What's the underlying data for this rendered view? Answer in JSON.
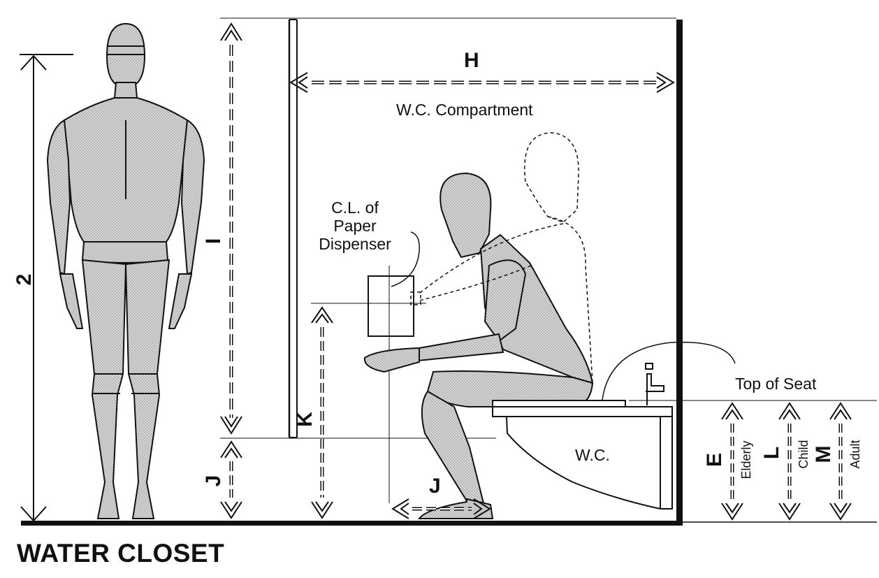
{
  "title": "WATER CLOSET",
  "labels": {
    "compartment": "W.C. Compartment",
    "dispenser_line1": "C.L. of",
    "dispenser_line2": "Paper",
    "dispenser_line3": "Dispenser",
    "top_of_seat": "Top of Seat",
    "wc": "W.C."
  },
  "dimension_letters": {
    "h": "H",
    "i": "I",
    "j_left": "J",
    "j_floor": "J",
    "k": "K",
    "e": "E",
    "l": "L",
    "m": "M",
    "two": "2"
  },
  "seat_height_groups": {
    "elderly": "Elderly",
    "child": "Child",
    "adult": "Adult"
  },
  "colors": {
    "line": "#111111",
    "figure_fill": "#c9c9c9"
  }
}
